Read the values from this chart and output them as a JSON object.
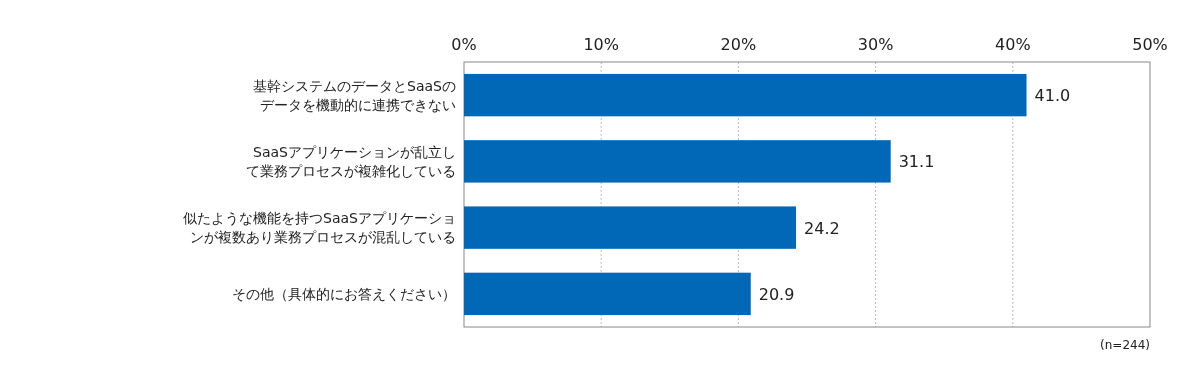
{
  "chart_data": {
    "type": "bar",
    "orientation": "horizontal",
    "categories": [
      "基幹システムのデータとSaaSのデータを機動的に連携できない",
      "SaaSアプリケーションが乱立して業務プロセスが複雑化している",
      "似たような機能を持つSaaSアプリケーションが複数あり業務プロセスが混乱している",
      "その他（具体的にお答えください）"
    ],
    "values": [
      41.0,
      31.1,
      24.2,
      20.9
    ],
    "value_labels": [
      "41.0",
      "31.1",
      "24.2",
      "20.9"
    ],
    "color": "#0068b7",
    "xlim": [
      0,
      50
    ],
    "xticks": [
      {
        "value": 0,
        "label": "0%"
      },
      {
        "value": 10,
        "label": "10%"
      },
      {
        "value": 20,
        "label": "20%"
      },
      {
        "value": 30,
        "label": "30%"
      },
      {
        "value": 40,
        "label": "40%"
      },
      {
        "value": 50,
        "label": "50%"
      }
    ],
    "grid": "x",
    "annotations": [
      "(n=244)"
    ]
  }
}
